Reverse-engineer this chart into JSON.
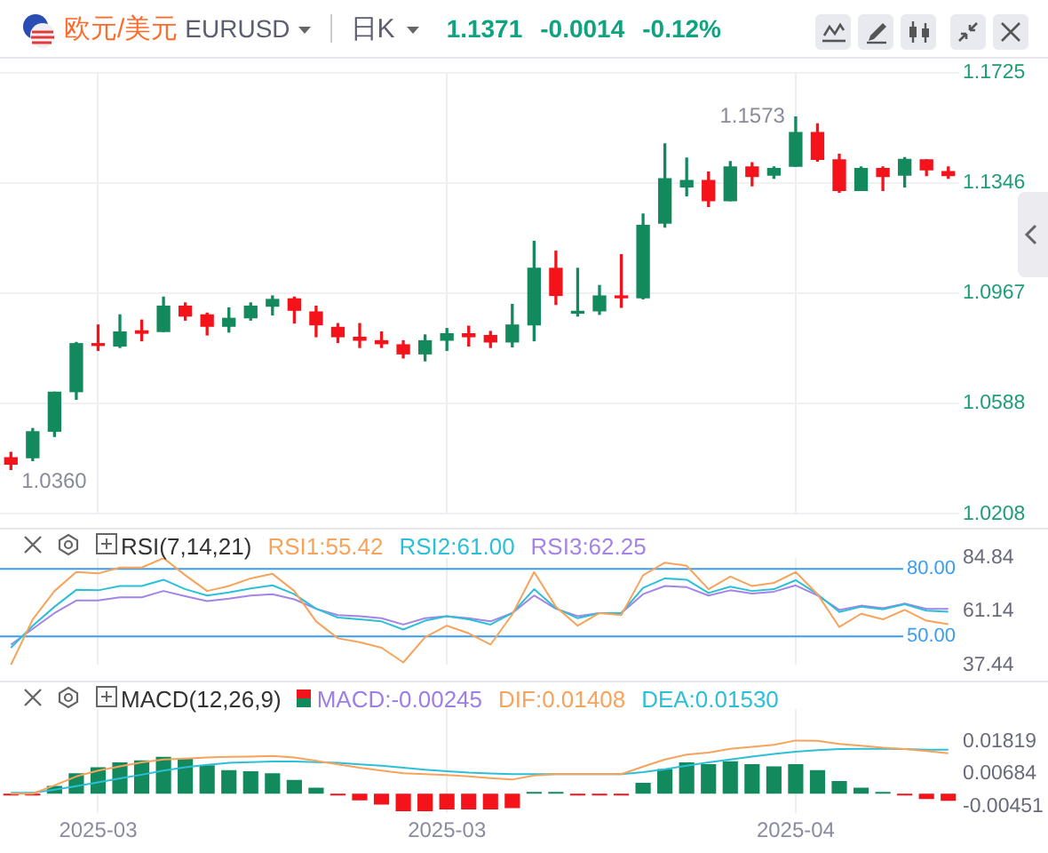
{
  "chart_data": [
    {
      "type": "candlestick",
      "title": "欧元/美元",
      "subtitle": "EURUSD",
      "annotations": [
        "日K",
        "1.1371",
        "-0.0014",
        "-0.12%",
        "1.0360",
        "1.1573"
      ],
      "categories": [
        null,
        null,
        null,
        null,
        "2025-03",
        null,
        null,
        null,
        null,
        null,
        null,
        null,
        null,
        null,
        null,
        null,
        null,
        null,
        null,
        null,
        "2025-03",
        null,
        null,
        null,
        null,
        null,
        null,
        null,
        null,
        null,
        null,
        null,
        null,
        null,
        null,
        null,
        "2025-04",
        null,
        null,
        null,
        null,
        null,
        null,
        null
      ],
      "ohlc": [
        [
          1.0401,
          1.0419,
          1.036,
          1.0379
        ],
        [
          1.0401,
          1.0501,
          1.0391,
          1.049
        ],
        [
          1.0492,
          1.0626,
          1.0474,
          1.0626
        ],
        [
          1.0628,
          1.0797,
          1.0602,
          1.0793
        ],
        [
          1.0793,
          1.0857,
          1.077,
          1.0787
        ],
        [
          1.0785,
          1.0892,
          1.078,
          1.0833
        ],
        [
          1.0837,
          1.0874,
          1.0803,
          1.0829
        ],
        [
          1.0835,
          1.0953,
          1.0835,
          1.0922
        ],
        [
          1.0922,
          1.0933,
          1.0874,
          1.0888
        ],
        [
          1.0892,
          1.0898,
          1.0823,
          1.0853
        ],
        [
          1.0853,
          1.0916,
          1.0833,
          1.088
        ],
        [
          1.0882,
          1.0933,
          1.0874,
          1.0922
        ],
        [
          1.0922,
          1.0957,
          1.0892,
          1.0945
        ],
        [
          1.0947,
          1.0953,
          1.0864,
          1.0908
        ],
        [
          1.0902,
          1.0922,
          1.0817,
          1.0858
        ],
        [
          1.0849,
          1.0862,
          1.0797,
          1.0817
        ],
        [
          1.0815,
          1.0862,
          1.078,
          1.0805
        ],
        [
          1.0803,
          1.0833,
          1.078,
          1.0793
        ],
        [
          1.0789,
          1.0803,
          1.0744,
          1.0758
        ],
        [
          1.0758,
          1.0823,
          1.0734,
          1.0803
        ],
        [
          1.0805,
          1.0845,
          1.077,
          1.0827
        ],
        [
          1.0827,
          1.0853,
          1.0785,
          1.0817
        ],
        [
          1.0821,
          1.0835,
          1.078,
          1.0799
        ],
        [
          1.0799,
          1.0928,
          1.0782,
          1.0857
        ],
        [
          1.0858,
          1.1145,
          1.0803,
          1.1052
        ],
        [
          1.1052,
          1.1111,
          1.0928,
          1.0959
        ],
        [
          1.0898,
          1.1052,
          1.0888,
          1.0904
        ],
        [
          1.0906,
          1.0993,
          1.0894,
          1.0957
        ],
        [
          1.0957,
          1.1099,
          1.0918,
          1.0951
        ],
        [
          1.0951,
          1.1239,
          1.0947,
          1.12
        ],
        [
          1.1208,
          1.148,
          1.1194,
          1.136
        ],
        [
          1.1332,
          1.1431,
          1.1302,
          1.1354
        ],
        [
          1.1354,
          1.1383,
          1.1265,
          1.1285
        ],
        [
          1.1285,
          1.1419,
          1.1285,
          1.1401
        ],
        [
          1.1401,
          1.1415,
          1.1336,
          1.1368
        ],
        [
          1.1373,
          1.1401,
          1.1362,
          1.1395
        ],
        [
          1.1403,
          1.1573,
          1.1403,
          1.1519
        ],
        [
          1.1519,
          1.1549,
          1.1421,
          1.1427
        ],
        [
          1.1425,
          1.1444,
          1.1314,
          1.132
        ],
        [
          1.132,
          1.1401,
          1.132,
          1.1395
        ],
        [
          1.1395,
          1.1401,
          1.132,
          1.1368
        ],
        [
          1.1373,
          1.1433,
          1.1332,
          1.1427
        ],
        [
          1.1425,
          1.1425,
          1.1371,
          1.1391
        ],
        [
          1.1385,
          1.1401,
          1.1362,
          1.1371
        ]
      ],
      "colors": [
        "#f5131b",
        "#138a5e",
        "#138a5e",
        "#138a5e",
        "#f5131b",
        "#138a5e",
        "#f5131b",
        "#138a5e",
        "#f5131b",
        "#f5131b",
        "#138a5e",
        "#138a5e",
        "#138a5e",
        "#f5131b",
        "#f5131b",
        "#f5131b",
        "#f5131b",
        "#f5131b",
        "#f5131b",
        "#138a5e",
        "#138a5e",
        "#f5131b",
        "#f5131b",
        "#138a5e",
        "#138a5e",
        "#f5131b",
        "#138a5e",
        "#138a5e",
        "#f5131b",
        "#138a5e",
        "#138a5e",
        "#138a5e",
        "#f5131b",
        "#138a5e",
        "#f5131b",
        "#138a5e",
        "#138a5e",
        "#f5131b",
        "#f5131b",
        "#138a5e",
        "#f5131b",
        "#138a5e",
        "#f5131b",
        "#f5131b"
      ],
      "ylim": [
        1.0208,
        1.1725
      ],
      "yticks": [
        1.0208,
        1.0588,
        1.0967,
        1.1346,
        1.1725
      ],
      "grid": true,
      "tick_labels": "y"
    },
    {
      "type": "line",
      "title": "RSI(7,14,21)",
      "categories": [
        null,
        null,
        null,
        null,
        "2025-03",
        null,
        null,
        null,
        null,
        null,
        null,
        null,
        null,
        null,
        null,
        null,
        null,
        null,
        null,
        null,
        "2025-03",
        null,
        null,
        null,
        null,
        null,
        null,
        null,
        null,
        null,
        null,
        null,
        null,
        null,
        null,
        null,
        "2025-04",
        null,
        null,
        null,
        null,
        null,
        null,
        null
      ],
      "series": [
        {
          "name": "RSI1:55.42",
          "color": "#f7a35c",
          "values": [
            37.44,
            57.6,
            70.2,
            78.6,
            78.0,
            80.6,
            80.6,
            84.8,
            77.2,
            70.2,
            72.4,
            75.8,
            77.8,
            70.2,
            56.7,
            49.2,
            47.5,
            45.0,
            38.5,
            49.7,
            54.8,
            51.4,
            46.4,
            59.8,
            78.6,
            63.2,
            54.8,
            60.4,
            59.5,
            77.2,
            82.8,
            81.4,
            71.0,
            76.6,
            72.4,
            73.8,
            78.6,
            68.8,
            54.2,
            60.1,
            57.6,
            61.8,
            57.0,
            55.42
          ]
        },
        {
          "name": "RSI2:61.00",
          "color": "#2bbfd8",
          "values": [
            45.0,
            54.8,
            63.2,
            70.7,
            70.5,
            72.4,
            72.4,
            75.2,
            71.0,
            68.2,
            69.6,
            71.3,
            72.7,
            68.8,
            62.3,
            58.4,
            57.6,
            56.7,
            53.1,
            57.0,
            59.0,
            57.6,
            55.3,
            60.4,
            71.0,
            62.6,
            58.1,
            60.4,
            60.4,
            71.6,
            75.8,
            75.2,
            69.3,
            72.1,
            70.2,
            71.0,
            75.0,
            68.8,
            60.9,
            63.2,
            62.1,
            64.3,
            61.5,
            61.0
          ]
        },
        {
          "name": "RSI3:62.25",
          "color": "#a484e6",
          "values": [
            46.4,
            53.4,
            60.4,
            66.0,
            66.0,
            67.4,
            67.4,
            70.2,
            67.9,
            65.7,
            66.8,
            68.2,
            68.8,
            66.5,
            62.3,
            59.5,
            59.0,
            58.1,
            55.3,
            58.1,
            59.0,
            58.1,
            56.7,
            60.4,
            68.2,
            62.3,
            59.0,
            60.4,
            60.4,
            68.8,
            72.4,
            71.9,
            68.2,
            70.5,
            69.1,
            69.9,
            72.7,
            68.2,
            61.8,
            63.7,
            62.6,
            64.6,
            62.3,
            62.25
          ]
        }
      ],
      "ylim": [
        37.44,
        84.84
      ],
      "yticks": [
        37.44,
        61.14,
        84.84
      ],
      "ref_lines": [
        {
          "axis": "y",
          "value": 80,
          "label": "80.00",
          "color": "#3a9df0"
        },
        {
          "axis": "y",
          "value": 50,
          "label": "50.00",
          "color": "#3a9df0"
        }
      ],
      "grid": "x",
      "legend": "top",
      "marker": "none",
      "tick_labels": "y"
    },
    {
      "type": "bar",
      "title": "MACD(12,26,9)",
      "categories": [
        null,
        null,
        null,
        null,
        "2025-03",
        null,
        null,
        null,
        null,
        null,
        null,
        null,
        null,
        null,
        null,
        null,
        null,
        null,
        null,
        null,
        "2025-03",
        null,
        null,
        null,
        null,
        null,
        null,
        null,
        null,
        null,
        null,
        null,
        null,
        null,
        null,
        null,
        "2025-04",
        null,
        null,
        null,
        null,
        null,
        null,
        null
      ],
      "series": [
        {
          "name": "MACD:-0.00245",
          "color": "#9d7ee6",
          "colors": [
            "#f5131b",
            "#f5131b",
            "#138a5e",
            "#138a5e",
            "#138a5e",
            "#138a5e",
            "#138a5e",
            "#138a5e",
            "#138a5e",
            "#138a5e",
            "#138a5e",
            "#138a5e",
            "#138a5e",
            "#138a5e",
            "#138a5e",
            "#f5131b",
            "#f5131b",
            "#f5131b",
            "#f5131b",
            "#f5131b",
            "#f5131b",
            "#f5131b",
            "#f5131b",
            "#f5131b",
            "#138a5e",
            "#138a5e",
            "#f5131b",
            "#f5131b",
            "#f5131b",
            "#138a5e",
            "#138a5e",
            "#138a5e",
            "#138a5e",
            "#138a5e",
            "#138a5e",
            "#138a5e",
            "#138a5e",
            "#138a5e",
            "#138a5e",
            "#138a5e",
            "#138a5e",
            "#f5131b",
            "#f5131b",
            "#f5131b"
          ],
          "values": [
            -0.0005,
            -0.0005,
            0.0027,
            0.0071,
            0.0092,
            0.0109,
            0.0116,
            0.0128,
            0.0122,
            0.0099,
            0.0082,
            0.0078,
            0.0071,
            0.0048,
            0.0021,
            -0.0005,
            -0.0023,
            -0.0038,
            -0.0061,
            -0.0061,
            -0.0055,
            -0.0055,
            -0.0055,
            -0.005,
            0.0005,
            0.0005,
            -0.0005,
            -0.0005,
            -0.0005,
            0.0038,
            0.0086,
            0.0109,
            0.0103,
            0.0113,
            0.0103,
            0.0095,
            0.0103,
            0.0082,
            0.0044,
            0.0021,
            0.0005,
            -0.0005,
            -0.0019,
            -0.00245
          ]
        },
        {
          "type": "line",
          "name": "DIF:0.01408",
          "color": "#f7a35c",
          "values": [
            0.0,
            0.0,
            0.0029,
            0.006,
            0.008,
            0.0095,
            0.0109,
            0.0119,
            0.0122,
            0.0126,
            0.0128,
            0.0129,
            0.0131,
            0.0126,
            0.0114,
            0.0102,
            0.009,
            0.008,
            0.0071,
            0.0068,
            0.0065,
            0.006,
            0.0054,
            0.0049,
            0.0063,
            0.0068,
            0.0068,
            0.0068,
            0.0068,
            0.0094,
            0.0119,
            0.0136,
            0.0143,
            0.0156,
            0.0163,
            0.017,
            0.0185,
            0.0184,
            0.0173,
            0.0167,
            0.016,
            0.0155,
            0.0148,
            0.01408
          ]
        },
        {
          "type": "line",
          "name": "DEA:0.01530",
          "color": "#2bbfd8",
          "values": [
            0.0003,
            0.0003,
            0.0014,
            0.0026,
            0.0039,
            0.0053,
            0.0066,
            0.008,
            0.0092,
            0.01,
            0.0107,
            0.011,
            0.0112,
            0.0112,
            0.011,
            0.0107,
            0.0102,
            0.0097,
            0.009,
            0.0083,
            0.0078,
            0.0073,
            0.007,
            0.0068,
            0.0068,
            0.0068,
            0.0068,
            0.0068,
            0.0068,
            0.0075,
            0.0085,
            0.0097,
            0.0109,
            0.0119,
            0.0129,
            0.0138,
            0.0146,
            0.0151,
            0.0155,
            0.0156,
            0.0156,
            0.0155,
            0.0153,
            0.0153
          ]
        }
      ],
      "ylim": [
        -0.0068,
        0.0295
      ],
      "yticks": [
        -0.00451,
        0.00684,
        0.01819
      ],
      "grid": "x",
      "legend": "top",
      "marker": "none"
    }
  ]
}
